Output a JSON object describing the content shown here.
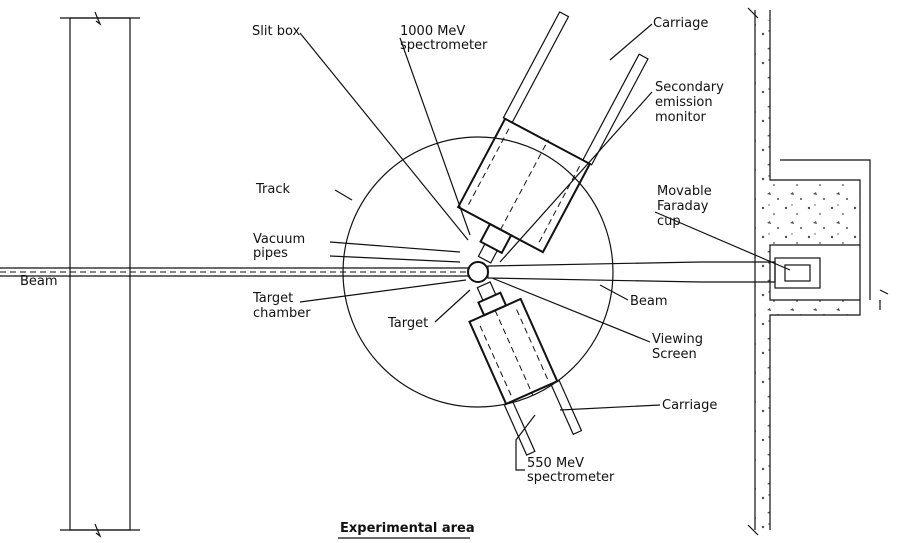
{
  "labels": [
    {
      "lines": [
        "Slit box"
      ]
    },
    {
      "lines": [
        "1000 MeV",
        "spectrometer"
      ]
    },
    {
      "lines": [
        "Carriage"
      ]
    },
    {
      "lines": [
        "Secondary",
        "emission",
        "monitor"
      ]
    },
    {
      "lines": [
        "Track"
      ]
    },
    {
      "lines": [
        "Movable",
        "Faraday",
        "cup"
      ]
    },
    {
      "lines": [
        "Vacuum",
        "pipes"
      ]
    },
    {
      "lines": [
        "Beam"
      ]
    },
    {
      "lines": [
        "Target",
        "chamber"
      ]
    },
    {
      "lines": [
        "Target"
      ]
    },
    {
      "lines": [
        "Beam"
      ]
    },
    {
      "lines": [
        "Viewing",
        "Screen"
      ]
    },
    {
      "lines": [
        "Carriage"
      ]
    },
    {
      "lines": [
        "550 MeV",
        "spectrometer"
      ]
    }
  ],
  "caption": "Experimental area"
}
